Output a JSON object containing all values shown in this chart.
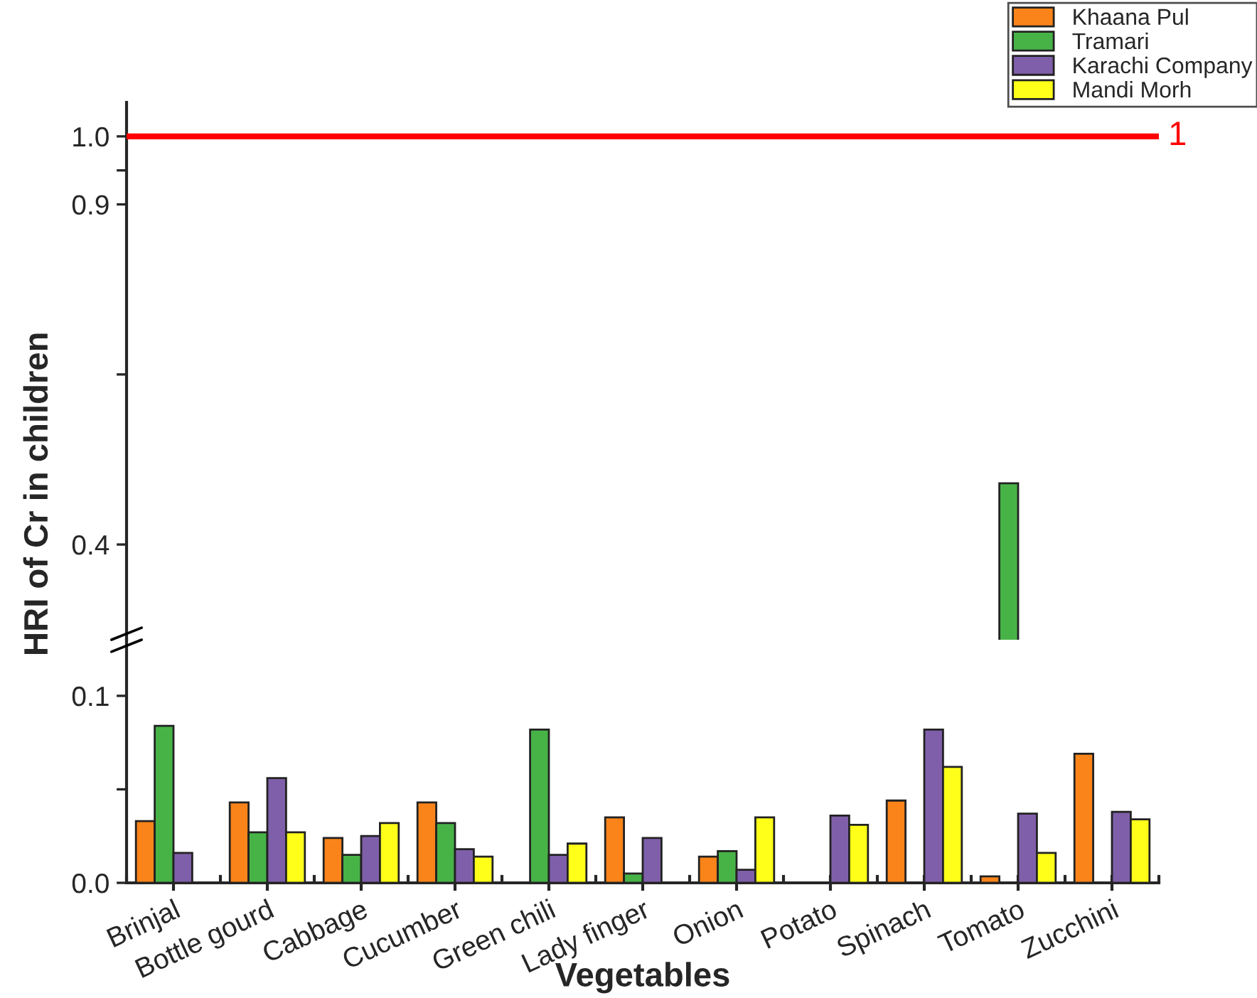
{
  "chart_data": [
    {
      "type": "bar",
      "categories": [
        null,
        null,
        null,
        null,
        null,
        null,
        null,
        null,
        null,
        null,
        null
      ],
      "series": [
        {
          "name": "Khaana Pul",
          "color": "#fa8419",
          "values": [
            null,
            null,
            null,
            null,
            null,
            null,
            null,
            null,
            null,
            null,
            null
          ]
        },
        {
          "name": "Tramari",
          "color": "#47b347",
          "values": [
            null,
            null,
            null,
            null,
            null,
            null,
            null,
            null,
            null,
            0.49,
            null
          ]
        },
        {
          "name": "Karachi Company",
          "color": "#7f5fa9",
          "values": [
            null,
            null,
            null,
            null,
            null,
            null,
            null,
            null,
            null,
            null,
            null
          ]
        },
        {
          "name": "Mandi Morh",
          "color": "#ffff1a",
          "values": [
            null,
            null,
            null,
            null,
            null,
            null,
            null,
            null,
            null,
            null,
            null
          ]
        }
      ],
      "ylim": [
        0.26,
        1.05
      ],
      "yticks": [
        0.4,
        {
          "value": 0.65,
          "label": null
        },
        0.9,
        {
          "value": 0.95,
          "label": null
        },
        {
          "value": 1.0,
          "label": "1.0"
        }
      ],
      "tick_labels": "y",
      "ref_lines": [
        {
          "axis": "y",
          "value": 1,
          "label": "1",
          "color": "#ff0000"
        }
      ],
      "legend": "top right"
    },
    {
      "type": "bar",
      "categories": [
        "Brinjal",
        "Bottle gourd",
        "Cabbage",
        "Cucumber",
        "Green chili",
        "Lady finger",
        "Onion",
        "Potato",
        "Spinach",
        "Tomato",
        "Zucchini"
      ],
      "xlabel": "Vegetables",
      "ylabel": "HRI of Cr in children",
      "series": [
        {
          "color": "#fa8419",
          "values": [
            0.033,
            0.043,
            0.024,
            0.043,
            null,
            0.035,
            0.014,
            null,
            0.044,
            0.0035,
            0.069
          ]
        },
        {
          "color": "#47b347",
          "values": [
            0.084,
            0.027,
            0.015,
            0.032,
            0.082,
            0.005,
            0.017,
            null,
            null,
            null,
            null
          ]
        },
        {
          "color": "#7f5fa9",
          "values": [
            0.016,
            0.056,
            0.025,
            0.018,
            0.015,
            0.024,
            0.007,
            0.036,
            0.082,
            0.037,
            0.038
          ]
        },
        {
          "color": "#ffff1a",
          "values": [
            null,
            0.027,
            0.032,
            0.014,
            0.021,
            null,
            0.035,
            0.031,
            0.062,
            0.016,
            0.034
          ]
        }
      ],
      "ylim": [
        0,
        0.13
      ],
      "yticks": [
        {
          "value": 0.0,
          "label": "0.0"
        },
        {
          "value": 0.05,
          "label": null
        },
        0.1
      ]
    }
  ]
}
